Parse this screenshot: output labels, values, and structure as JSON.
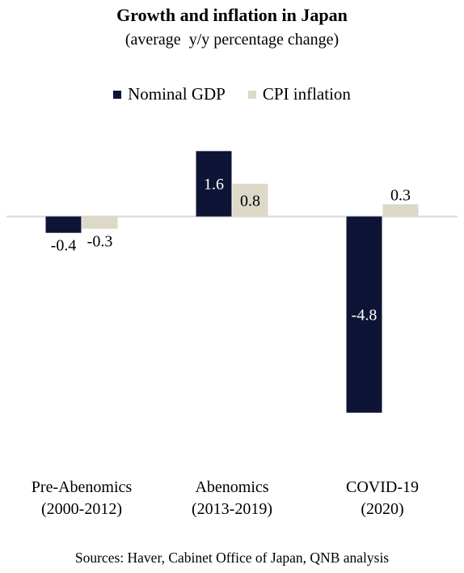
{
  "chart_data": {
    "type": "bar",
    "title": "Growth and inflation in Japan",
    "subtitle": "(average  y/y percentage change)",
    "categories": [
      [
        "Pre-Abenomics",
        "(2000-2012)"
      ],
      [
        "Abenomics",
        "(2013-2019)"
      ],
      [
        "COVID-19",
        "(2020)"
      ]
    ],
    "series": [
      {
        "name": "Nominal GDP",
        "values": [
          -0.4,
          1.6,
          -4.8
        ],
        "labels": [
          "-0.4",
          "1.6",
          "-4.8"
        ],
        "color": "#0d1435"
      },
      {
        "name": "CPI inflation",
        "values": [
          -0.3,
          0.8,
          0.3
        ],
        "labels": [
          "-0.3",
          "0.8",
          "0.3"
        ],
        "color": "#ddd9c8"
      }
    ],
    "ylim": [
      -5.8,
      2.0
    ],
    "grid": false,
    "legend_position": "top-center",
    "source": "Sources: Haver, Cabinet Office of Japan, QNB analysis"
  },
  "colors": {
    "axis": "#d9d9d9",
    "label_light": "#ffffff",
    "label_dark": "#000000"
  }
}
